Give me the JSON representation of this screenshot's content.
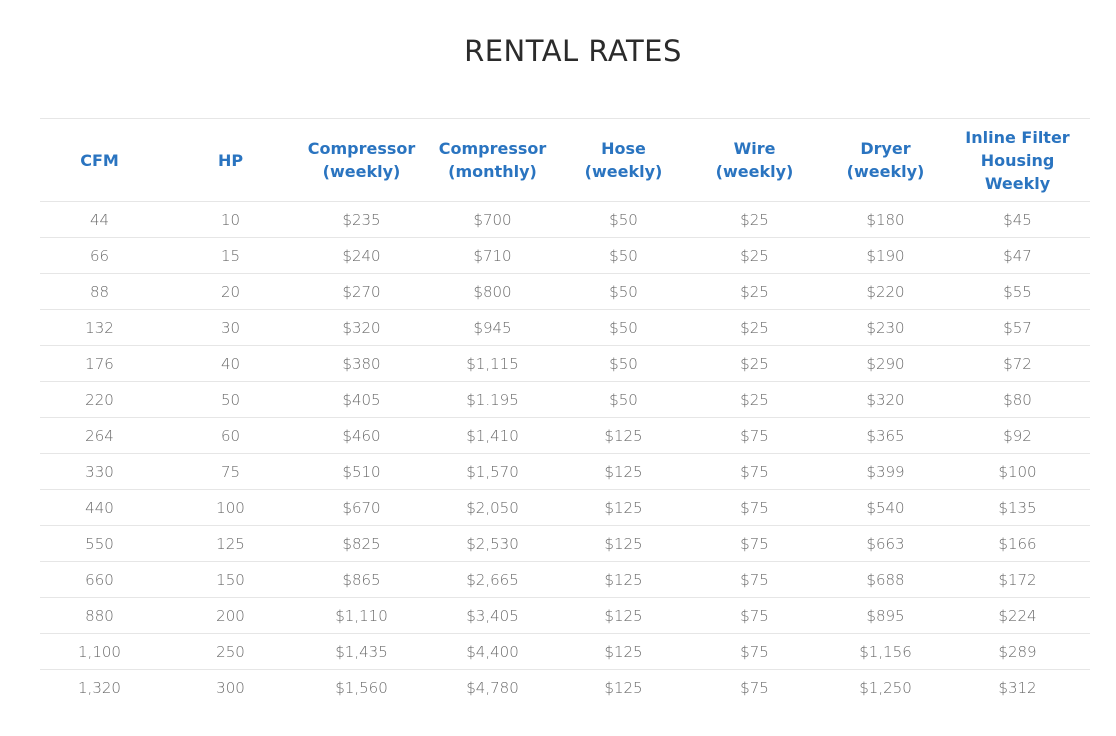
{
  "page": {
    "title": "RENTAL RATES"
  },
  "table": {
    "headers": [
      "CFM",
      "HP",
      "Compressor\n(weekly)",
      "Compressor\n(monthly)",
      "Hose\n(weekly)",
      "Wire\n(weekly)",
      "Dryer\n(weekly)",
      "Inline Filter\nHousing\nWeekly"
    ],
    "rows": [
      [
        "44",
        "10",
        "$235",
        "$700",
        "$50",
        "$25",
        "$180",
        "$45"
      ],
      [
        "66",
        "15",
        "$240",
        "$710",
        "$50",
        "$25",
        "$190",
        "$47"
      ],
      [
        "88",
        "20",
        "$270",
        "$800",
        "$50",
        "$25",
        "$220",
        "$55"
      ],
      [
        "132",
        "30",
        "$320",
        "$945",
        "$50",
        "$25",
        "$230",
        "$57"
      ],
      [
        "176",
        "40",
        "$380",
        "$1,115",
        "$50",
        "$25",
        "$290",
        "$72"
      ],
      [
        "220",
        "50",
        "$405",
        "$1.195",
        "$50",
        "$25",
        "$320",
        "$80"
      ],
      [
        "264",
        "60",
        "$460",
        "$1,410",
        "$125",
        "$75",
        "$365",
        "$92"
      ],
      [
        "330",
        "75",
        "$510",
        "$1,570",
        "$125",
        "$75",
        "$399",
        "$100"
      ],
      [
        "440",
        "100",
        "$670",
        "$2,050",
        "$125",
        "$75",
        "$540",
        "$135"
      ],
      [
        "550",
        "125",
        "$825",
        "$2,530",
        "$125",
        "$75",
        "$663",
        "$166"
      ],
      [
        "660",
        "150",
        "$865",
        "$2,665",
        "$125",
        "$75",
        "$688",
        "$172"
      ],
      [
        "880",
        "200",
        "$1,110",
        "$3,405",
        "$125",
        "$75",
        "$895",
        "$224"
      ],
      [
        "1,100",
        "250",
        "$1,435",
        "$4,400",
        "$125",
        "$75",
        "$1,156",
        "$289"
      ],
      [
        "1,320",
        "300",
        "$1,560",
        "$4,780",
        "$125",
        "$75",
        "$1,250",
        "$312"
      ]
    ]
  },
  "colors": {
    "header_text": "#2a74c0",
    "body_text": "#6b6b6b",
    "title_text": "#2b2b2b",
    "row_border": "#e6e6e6"
  }
}
